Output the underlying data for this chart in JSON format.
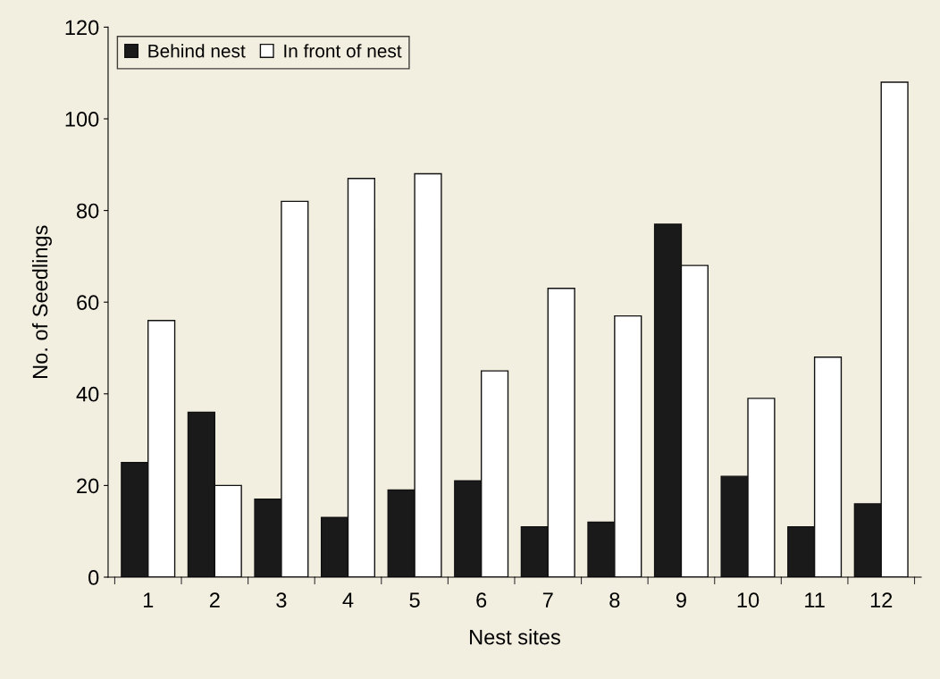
{
  "chart_data": {
    "type": "bar",
    "xlabel": "Nest sites",
    "ylabel": "No. of Seedlings",
    "categories": [
      "1",
      "2",
      "3",
      "4",
      "5",
      "6",
      "7",
      "8",
      "9",
      "10",
      "11",
      "12"
    ],
    "series": [
      {
        "name": "Behind nest",
        "color": "#1a1a1a",
        "values": [
          25,
          36,
          17,
          13,
          19,
          21,
          11,
          12,
          77,
          22,
          11,
          16
        ]
      },
      {
        "name": "In front of nest",
        "color": "#ffffff",
        "values": [
          56,
          20,
          82,
          87,
          88,
          45,
          63,
          57,
          68,
          39,
          48,
          108
        ]
      }
    ],
    "ylim": [
      0,
      120
    ],
    "yticks": [
      0,
      20,
      40,
      60,
      80,
      100,
      120
    ],
    "grid": false,
    "legend": "top left"
  }
}
